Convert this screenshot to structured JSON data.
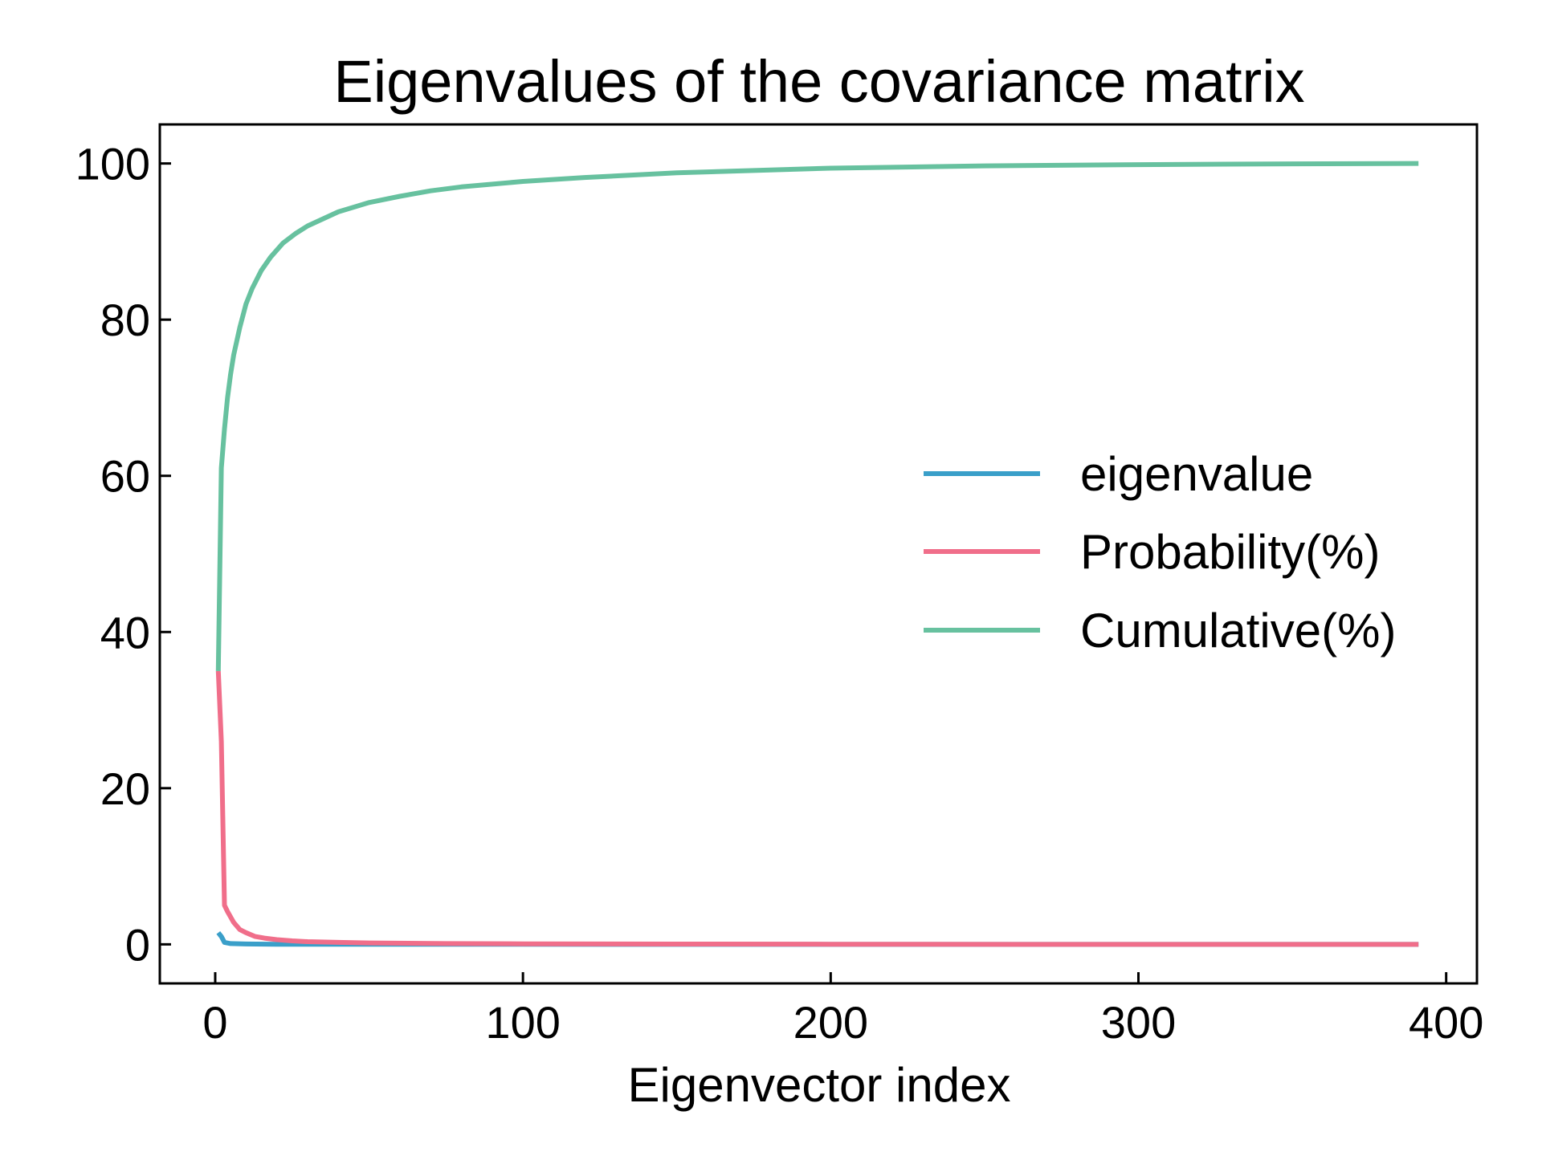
{
  "chart_data": {
    "type": "line",
    "title": "Eigenvalues of the covariance matrix",
    "xlabel": "Eigenvector index",
    "ylabel": "",
    "xlim": [
      -18,
      410
    ],
    "ylim": [
      -5,
      105
    ],
    "xticks": [
      0,
      100,
      200,
      300,
      400
    ],
    "yticks": [
      0,
      20,
      40,
      60,
      80,
      100
    ],
    "grid": false,
    "legend_position": "center-right",
    "series": [
      {
        "name": "eigenvalue",
        "color": "#3a9fc9",
        "x": [
          1,
          2,
          3,
          5,
          10,
          20,
          50,
          100,
          200,
          300,
          391
        ],
        "y": [
          1.5,
          1.0,
          0.25,
          0.1,
          0.05,
          0.02,
          0.01,
          0.005,
          0.0,
          0.0,
          0.0
        ]
      },
      {
        "name": "Probability(%)",
        "color": "#f06e8a",
        "x": [
          1,
          2,
          3,
          4,
          6,
          8,
          10,
          13,
          16,
          20,
          25,
          30,
          40,
          50,
          75,
          100,
          150,
          200,
          300,
          391
        ],
        "y": [
          35,
          26,
          5,
          4.2,
          2.8,
          1.9,
          1.5,
          1.0,
          0.8,
          0.6,
          0.45,
          0.35,
          0.25,
          0.18,
          0.1,
          0.07,
          0.04,
          0.02,
          0.0,
          0.0
        ]
      },
      {
        "name": "Cumulative(%)",
        "color": "#67c19f",
        "x": [
          1,
          2,
          3,
          4,
          5,
          6,
          8,
          10,
          12,
          15,
          18,
          22,
          26,
          30,
          40,
          50,
          60,
          70,
          80,
          100,
          120,
          150,
          200,
          250,
          300,
          350,
          391
        ],
        "y": [
          35,
          61,
          66,
          70,
          73,
          75.5,
          79,
          82,
          84,
          86.3,
          88,
          89.8,
          91,
          92,
          93.8,
          95,
          95.8,
          96.5,
          97,
          97.7,
          98.2,
          98.8,
          99.4,
          99.7,
          99.85,
          99.95,
          100
        ]
      }
    ]
  }
}
